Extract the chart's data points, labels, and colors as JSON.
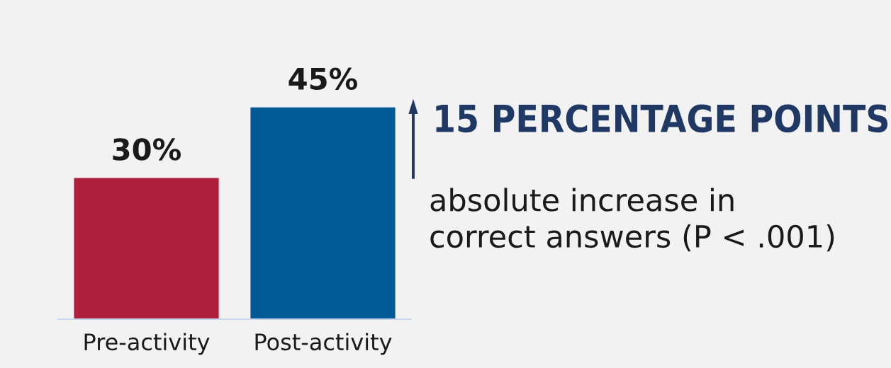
{
  "chart_data": {
    "type": "bar",
    "categories": [
      "Pre-activity",
      "Post-activity"
    ],
    "values": [
      30,
      45
    ],
    "colors": [
      "#ae1f3c",
      "#005a96"
    ],
    "value_labels": [
      "30%",
      "45%"
    ],
    "annotations": [
      "15 PERCENTAGE POINTS",
      "absolute increase in\ncorrect answers (P < .001)"
    ]
  }
}
